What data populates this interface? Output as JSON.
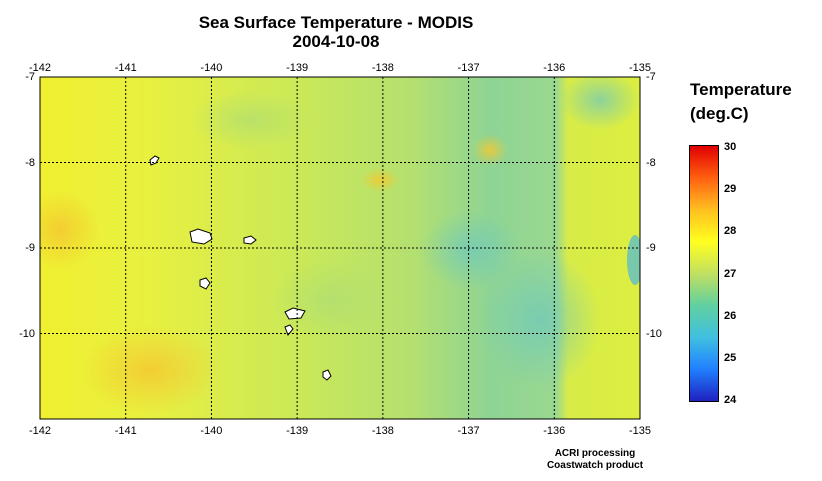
{
  "title": "Sea Surface Temperature - MODIS",
  "date": "2004-10-08",
  "map": {
    "lon_ticks": [
      "-142",
      "-141",
      "-140",
      "-139",
      "-138",
      "-137",
      "-136",
      "-135"
    ],
    "lat_ticks": [
      "-7",
      "-8",
      "-9",
      "-10"
    ],
    "lon_range": [
      -142,
      -135
    ],
    "lat_range": [
      -11,
      -7
    ],
    "grid": true
  },
  "colorbar": {
    "title_line1": "Temperature",
    "title_line2": "(deg.C)",
    "ticks": [
      "30",
      "29",
      "28",
      "27",
      "26",
      "25",
      "24"
    ],
    "range": [
      24,
      30
    ],
    "colors": [
      "#2020c0",
      "#2080ff",
      "#40c0e0",
      "#60d0a0",
      "#c0e060",
      "#ffff20",
      "#ffc020",
      "#ff6010",
      "#e00000"
    ]
  },
  "credits": {
    "line1": "ACRI processing",
    "line2": "Coastwatch product"
  }
}
